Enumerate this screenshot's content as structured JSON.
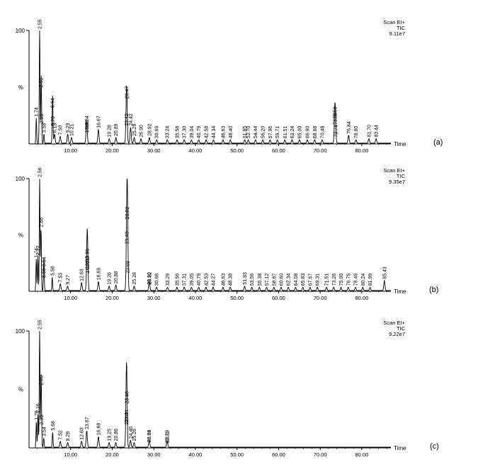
{
  "colors": {
    "trace": "#000000",
    "axis": "#000000",
    "background": "#ffffff"
  },
  "chart_data": [
    {
      "type": "line",
      "panel_label": "(a)",
      "header": [
        "Scan EI+",
        "TIC",
        "9.11e7"
      ],
      "xlabel": "Time",
      "ylabel_max": "100",
      "ylabel_mid": "%",
      "xlim": [
        0,
        87
      ],
      "ylim": [
        0,
        100
      ],
      "x_ticks": [
        10.0,
        20.0,
        30.0,
        40.0,
        50.0,
        60.0,
        70.0,
        80.0
      ],
      "x_tick_labels": [
        "10.00",
        "20.00",
        "30.00",
        "40.00",
        "50.00",
        "60.00",
        "70.00",
        "80.00"
      ],
      "peaks": [
        {
          "label": "1.74",
          "x": 1.74,
          "y": 22
        },
        {
          "label": "2.55",
          "x": 2.55,
          "y": 100
        },
        {
          "label": "2.91",
          "x": 2.91,
          "y": 48
        },
        {
          "label": "2.99",
          "x": 2.99,
          "y": 16
        },
        {
          "label": "3.58",
          "x": 3.58,
          "y": 8
        },
        {
          "label": "5.64",
          "x": 5.64,
          "y": 30
        },
        {
          "label": "5.70",
          "x": 5.7,
          "y": 14
        },
        {
          "label": "6.13",
          "x": 6.13,
          "y": 8
        },
        {
          "label": "7.50",
          "x": 7.5,
          "y": 6
        },
        {
          "label": "9.29",
          "x": 9.29,
          "y": 8
        },
        {
          "label": "10.21",
          "x": 10.21,
          "y": 5
        },
        {
          "label": "13.84",
          "x": 13.84,
          "y": 12
        },
        {
          "label": "13.88",
          "x": 13.88,
          "y": 8
        },
        {
          "label": "16.67",
          "x": 16.67,
          "y": 12
        },
        {
          "label": "19.28",
          "x": 19.28,
          "y": 4
        },
        {
          "label": "20.89",
          "x": 20.89,
          "y": 5
        },
        {
          "label": "23.42",
          "x": 23.42,
          "y": 14
        },
        {
          "label": "23.47",
          "x": 23.47,
          "y": 38
        },
        {
          "label": "24.42",
          "x": 24.42,
          "y": 14
        },
        {
          "label": "25.29",
          "x": 25.29,
          "y": 5
        },
        {
          "label": "26.90",
          "x": 26.9,
          "y": 4
        },
        {
          "label": "28.92",
          "x": 28.92,
          "y": 5
        },
        {
          "label": "30.69",
          "x": 30.69,
          "y": 3
        },
        {
          "label": "33.24",
          "x": 33.24,
          "y": 3
        },
        {
          "label": "35.58",
          "x": 35.58,
          "y": 3
        },
        {
          "label": "37.30",
          "x": 37.3,
          "y": 3
        },
        {
          "label": "39.04",
          "x": 39.04,
          "y": 3
        },
        {
          "label": "40.79",
          "x": 40.79,
          "y": 3
        },
        {
          "label": "42.58",
          "x": 42.58,
          "y": 3
        },
        {
          "label": "44.34",
          "x": 44.34,
          "y": 3
        },
        {
          "label": "46.63",
          "x": 46.63,
          "y": 3
        },
        {
          "label": "48.40",
          "x": 48.4,
          "y": 3
        },
        {
          "label": "51.85",
          "x": 51.85,
          "y": 3
        },
        {
          "label": "52.70",
          "x": 52.7,
          "y": 3
        },
        {
          "label": "54.44",
          "x": 54.44,
          "y": 3
        },
        {
          "label": "56.20",
          "x": 56.2,
          "y": 3
        },
        {
          "label": "57.96",
          "x": 57.96,
          "y": 3
        },
        {
          "label": "59.71",
          "x": 59.71,
          "y": 3
        },
        {
          "label": "61.51",
          "x": 61.51,
          "y": 3
        },
        {
          "label": "63.24",
          "x": 63.24,
          "y": 3
        },
        {
          "label": "65.00",
          "x": 65.0,
          "y": 3
        },
        {
          "label": "66.90",
          "x": 66.9,
          "y": 3
        },
        {
          "label": "68.68",
          "x": 68.68,
          "y": 3
        },
        {
          "label": "70.48",
          "x": 70.48,
          "y": 3
        },
        {
          "label": "73.53",
          "x": 73.53,
          "y": 20
        },
        {
          "label": "73.56",
          "x": 73.56,
          "y": 15
        },
        {
          "label": "73.74",
          "x": 73.74,
          "y": 4
        },
        {
          "label": "76.84",
          "x": 76.84,
          "y": 7
        },
        {
          "label": "78.60",
          "x": 78.6,
          "y": 3
        },
        {
          "label": "81.70",
          "x": 81.7,
          "y": 4
        },
        {
          "label": "83.44",
          "x": 83.44,
          "y": 4
        }
      ]
    },
    {
      "type": "line",
      "panel_label": "(b)",
      "header": [
        "Scan EI+",
        "TIC",
        "9.35e7"
      ],
      "xlabel": "Time",
      "ylabel_max": "100",
      "ylabel_mid": "%",
      "xlim": [
        0,
        87
      ],
      "ylim": [
        0,
        100
      ],
      "x_ticks": [
        10.0,
        20.0,
        30.0,
        40.0,
        50.0,
        60.0,
        70.0,
        80.0
      ],
      "x_tick_labels": [
        "10.00",
        "20.00",
        "30.00",
        "40.00",
        "50.00",
        "60.00",
        "70.00",
        "80.00"
      ],
      "peaks": [
        {
          "label": "1.74",
          "x": 1.74,
          "y": 28
        },
        {
          "label": "2.12",
          "x": 2.12,
          "y": 30
        },
        {
          "label": "2.56",
          "x": 2.56,
          "y": 100
        },
        {
          "label": "2.88",
          "x": 2.88,
          "y": 55
        },
        {
          "label": "3.59",
          "x": 3.59,
          "y": 10
        },
        {
          "label": "3.54",
          "x": 3.54,
          "y": 20
        },
        {
          "label": "5.58",
          "x": 5.58,
          "y": 12
        },
        {
          "label": "7.53",
          "x": 7.53,
          "y": 6
        },
        {
          "label": "9.27",
          "x": 9.27,
          "y": 4
        },
        {
          "label": "12.63",
          "x": 12.63,
          "y": 7
        },
        {
          "label": "13.96",
          "x": 13.96,
          "y": 25
        },
        {
          "label": "14.05",
          "x": 14.05,
          "y": 14
        },
        {
          "label": "14.00",
          "x": 14.0,
          "y": 18
        },
        {
          "label": "16.69",
          "x": 16.69,
          "y": 8
        },
        {
          "label": "19.26",
          "x": 19.26,
          "y": 4
        },
        {
          "label": "20.88",
          "x": 20.88,
          "y": 5
        },
        {
          "label": "23.48",
          "x": 23.48,
          "y": 40
        },
        {
          "label": "23.62",
          "x": 23.62,
          "y": 62
        },
        {
          "label": "23.69",
          "x": 23.69,
          "y": 14
        },
        {
          "label": "25.28",
          "x": 25.28,
          "y": 4
        },
        {
          "label": "28.90",
          "x": 28.9,
          "y": 4
        },
        {
          "label": "28.92",
          "x": 28.92,
          "y": 4
        },
        {
          "label": "30.68",
          "x": 30.68,
          "y": 3
        },
        {
          "label": "33.29",
          "x": 33.29,
          "y": 3
        },
        {
          "label": "35.56",
          "x": 35.56,
          "y": 3
        },
        {
          "label": "37.31",
          "x": 37.31,
          "y": 3
        },
        {
          "label": "39.05",
          "x": 39.05,
          "y": 3
        },
        {
          "label": "40.79",
          "x": 40.79,
          "y": 3
        },
        {
          "label": "42.53",
          "x": 42.53,
          "y": 3
        },
        {
          "label": "44.27",
          "x": 44.27,
          "y": 3
        },
        {
          "label": "46.63",
          "x": 46.63,
          "y": 3
        },
        {
          "label": "48.38",
          "x": 48.38,
          "y": 3
        },
        {
          "label": "51.83",
          "x": 51.83,
          "y": 4
        },
        {
          "label": "53.56",
          "x": 53.56,
          "y": 3
        },
        {
          "label": "55.38",
          "x": 55.38,
          "y": 3
        },
        {
          "label": "57.12",
          "x": 57.12,
          "y": 3
        },
        {
          "label": "58.87",
          "x": 58.87,
          "y": 3
        },
        {
          "label": "60.60",
          "x": 60.6,
          "y": 3
        },
        {
          "label": "62.34",
          "x": 62.34,
          "y": 3
        },
        {
          "label": "64.08",
          "x": 64.08,
          "y": 3
        },
        {
          "label": "65.83",
          "x": 65.83,
          "y": 3
        },
        {
          "label": "67.57",
          "x": 67.57,
          "y": 3
        },
        {
          "label": "69.31",
          "x": 69.31,
          "y": 3
        },
        {
          "label": "71.51",
          "x": 71.51,
          "y": 3
        },
        {
          "label": "73.26",
          "x": 73.26,
          "y": 3
        },
        {
          "label": "75.00",
          "x": 75.0,
          "y": 3
        },
        {
          "label": "76.75",
          "x": 76.75,
          "y": 3
        },
        {
          "label": "78.49",
          "x": 78.49,
          "y": 3
        },
        {
          "label": "80.24",
          "x": 80.24,
          "y": 3
        },
        {
          "label": "81.99",
          "x": 81.99,
          "y": 3
        },
        {
          "label": "85.43",
          "x": 85.43,
          "y": 9
        }
      ]
    },
    {
      "type": "line",
      "panel_label": "(c)",
      "header": [
        "Scan EI+",
        "TIC",
        "9.22e7"
      ],
      "xlabel": "Time",
      "ylabel_max": "100",
      "ylabel_mid": "%",
      "xlim": [
        0,
        87
      ],
      "ylim": [
        0,
        100
      ],
      "x_ticks": [
        10.0,
        20.0,
        30.0,
        40.0,
        50.0,
        60.0,
        70.0,
        80.0
      ],
      "x_tick_labels": [
        "10.00",
        "20.00",
        "30.00",
        "40.00",
        "50.00",
        "60.00",
        "70.00",
        "80.00"
      ],
      "peaks": [
        {
          "label": "1.76",
          "x": 1.76,
          "y": 22
        },
        {
          "label": "2.16",
          "x": 2.16,
          "y": 28
        },
        {
          "label": "2.55",
          "x": 2.55,
          "y": 100
        },
        {
          "label": "2.89",
          "x": 2.89,
          "y": 52
        },
        {
          "label": "2.99",
          "x": 2.99,
          "y": 18
        },
        {
          "label": "3.54",
          "x": 3.54,
          "y": 8
        },
        {
          "label": "5.68",
          "x": 5.68,
          "y": 13
        },
        {
          "label": "7.52",
          "x": 7.52,
          "y": 5
        },
        {
          "label": "9.29",
          "x": 9.29,
          "y": 4
        },
        {
          "label": "12.63",
          "x": 12.63,
          "y": 5
        },
        {
          "label": "13.87",
          "x": 13.87,
          "y": 14
        },
        {
          "label": "16.68",
          "x": 16.68,
          "y": 9
        },
        {
          "label": "19.25",
          "x": 19.25,
          "y": 4
        },
        {
          "label": "20.86",
          "x": 20.86,
          "y": 4
        },
        {
          "label": "23.40",
          "x": 23.4,
          "y": 18
        },
        {
          "label": "23.44",
          "x": 23.44,
          "y": 20
        },
        {
          "label": "23.46",
          "x": 23.46,
          "y": 36
        },
        {
          "label": "24.40",
          "x": 24.4,
          "y": 6
        },
        {
          "label": "25.26",
          "x": 25.26,
          "y": 4
        },
        {
          "label": "28.88",
          "x": 28.88,
          "y": 3
        },
        {
          "label": "28.89",
          "x": 28.89,
          "y": 3
        },
        {
          "label": "33.19",
          "x": 33.19,
          "y": 3
        },
        {
          "label": "33.21",
          "x": 33.21,
          "y": 2
        }
      ]
    }
  ]
}
